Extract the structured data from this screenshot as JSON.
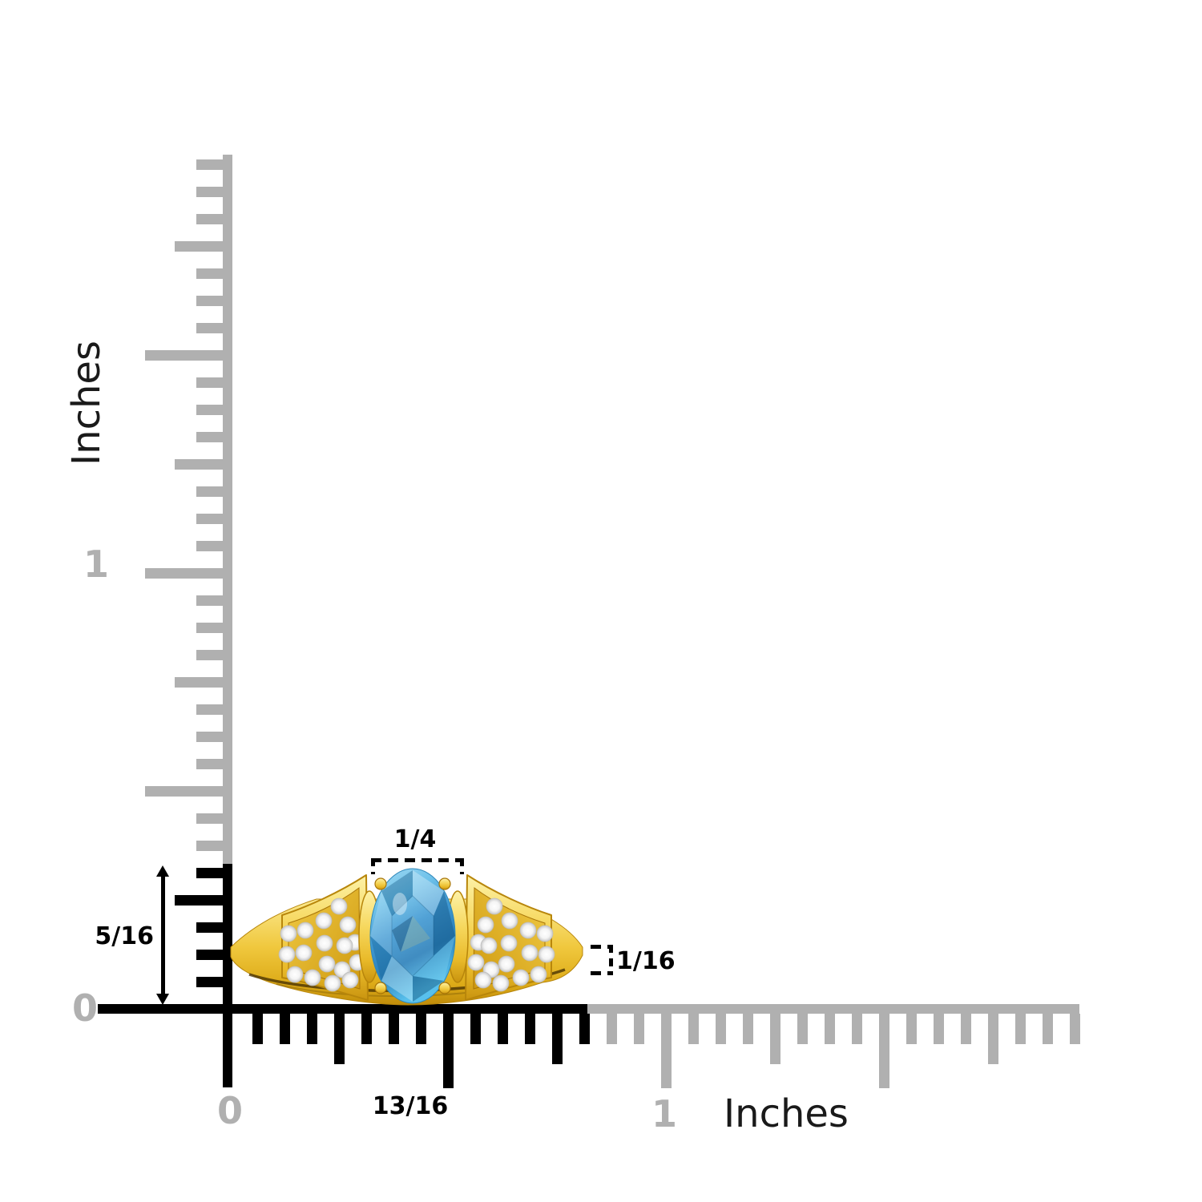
{
  "rulers": {
    "vertical": {
      "unit_label": "Inches",
      "one_label": "1",
      "zero_label": "0"
    },
    "horizontal": {
      "unit_label": "Inches",
      "one_label": "1",
      "zero_label": "0"
    }
  },
  "dimensions": {
    "stone_width_label": "1/4",
    "ring_height_label": "5/16",
    "band_thickness_label": "1/16",
    "ring_width_label": "13/16"
  },
  "ring": {
    "description": "Yellow gold ring with oval blue gemstone, four prongs and diamond pave fan shoulders"
  },
  "colors": {
    "ruler_gray": "#b0b0b0",
    "ruler_black": "#000000",
    "label_gray": "#b0b0b0",
    "dimension_text": "#000000",
    "gold": "#eec33a",
    "gold_dark": "#c9940f",
    "stone_blue": "#4ea8dc",
    "stone_dark": "#1a5e8e",
    "diamond_white": "#ffffff"
  }
}
